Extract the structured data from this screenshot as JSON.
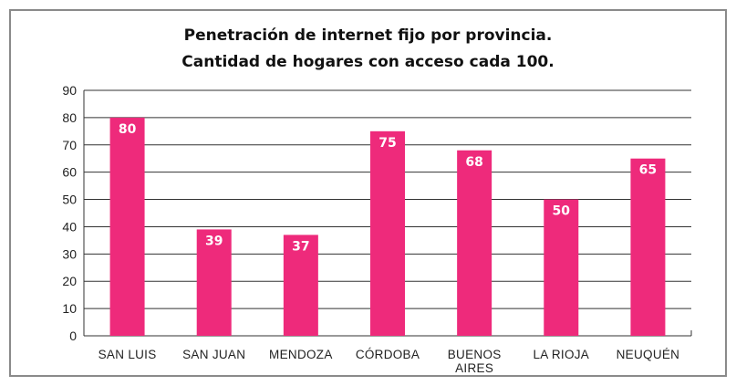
{
  "chart_data": {
    "type": "bar",
    "title": "Penetración de internet fijo por provincia.",
    "subtitle": "Cantidad de hogares con acceso cada 100.",
    "categories": [
      [
        "SAN LUIS"
      ],
      [
        "SAN JUAN"
      ],
      [
        "MENDOZA"
      ],
      [
        "CÓRDOBA"
      ],
      [
        "BUENOS",
        "AIRES"
      ],
      [
        "LA RIOJA"
      ],
      [
        "NEUQUÉN"
      ]
    ],
    "values": [
      80,
      39,
      37,
      75,
      68,
      50,
      65
    ],
    "data_labels": [
      "80",
      "39",
      "37",
      "75",
      "68",
      "50",
      "65"
    ],
    "ylim": [
      0,
      90
    ],
    "yticks": [
      0,
      10,
      20,
      30,
      40,
      50,
      60,
      70,
      80,
      90
    ],
    "xlabel": "",
    "ylabel": "",
    "grid": true,
    "bar_color": "#ee2a7b"
  }
}
